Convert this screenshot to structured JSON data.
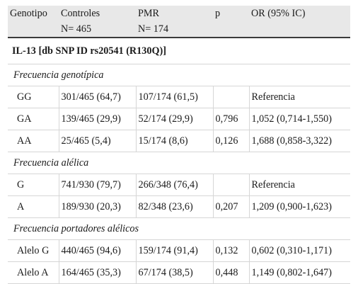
{
  "header": {
    "genotipo": "Genotipo",
    "controles": "Controles",
    "controles_n": "N= 465",
    "pmr": "PMR",
    "pmr_n": "N= 174",
    "p": "p",
    "or": "OR (95% IC)"
  },
  "section_title": "IL-13 [db SNP ID rs20541 (R130Q)]",
  "groups": [
    {
      "title": "Frecuencia genotípica",
      "rows": [
        {
          "genotipo": "GG",
          "controles": "301/465 (64,7)",
          "pmr": "107/174 (61,5)",
          "p": "",
          "or": "Referencia"
        },
        {
          "genotipo": "GA",
          "controles": "139/465 (29,9)",
          "pmr": "52/174 (29,9)",
          "p": "0,796",
          "or": "1,052 (0,714-1,550)"
        },
        {
          "genotipo": "AA",
          "controles": "25/465 (5,4)",
          "pmr": "15/174 (8,6)",
          "p": "0,126",
          "or": "1,688 (0,858-3,322)"
        }
      ]
    },
    {
      "title": "Frecuencia alélica",
      "rows": [
        {
          "genotipo": "G",
          "controles": "741/930 (79,7)",
          "pmr": "266/348 (76,4)",
          "p": "",
          "or": "Referencia"
        },
        {
          "genotipo": "A",
          "controles": "189/930 (20,3)",
          "pmr": "82/348 (23,6)",
          "p": "0,207",
          "or": "1,209 (0,900-1,623)"
        }
      ]
    },
    {
      "title": "Frecuencia portadores alélicos",
      "rows": [
        {
          "genotipo": "Alelo G",
          "controles": "440/465 (94,6)",
          "pmr": "159/174 (91,4)",
          "p": "0,132",
          "or": "0,602 (0,310-1,171)"
        },
        {
          "genotipo": "Alelo A",
          "controles": "164/465 (35,3)",
          "pmr": "67/174 (38,5)",
          "p": "0,448",
          "or": "1,149 (0,802-1,647)"
        }
      ]
    }
  ]
}
